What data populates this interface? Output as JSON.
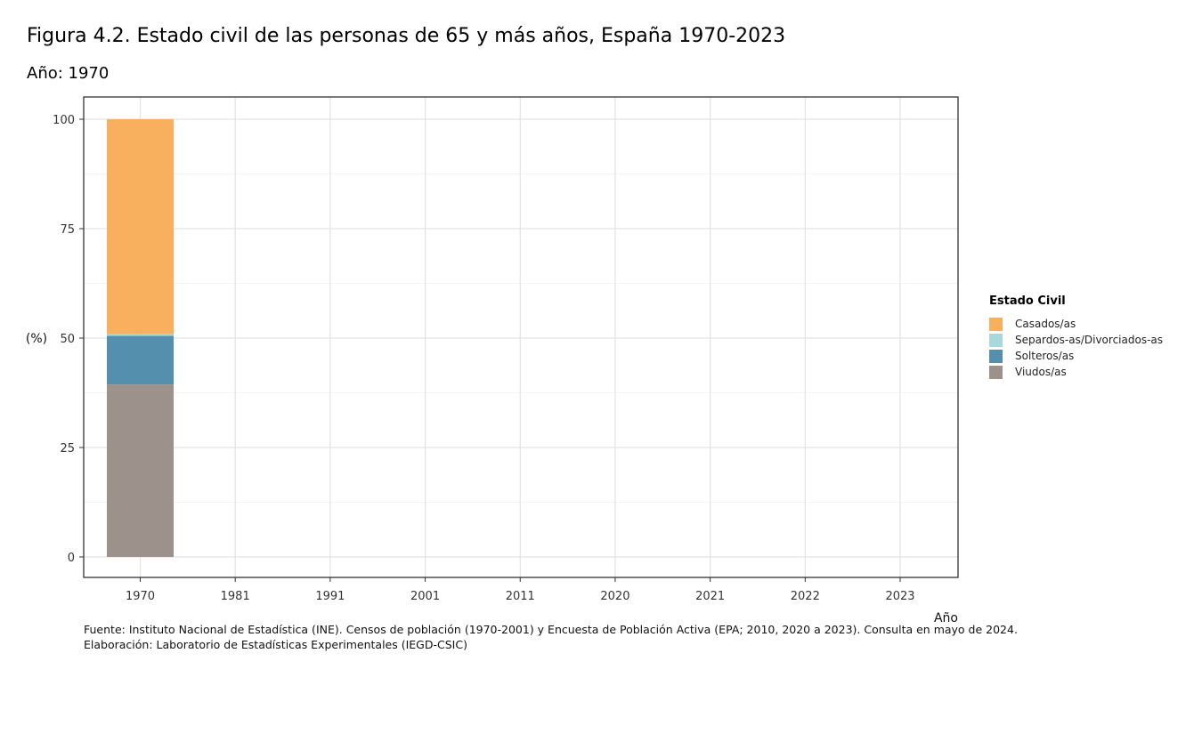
{
  "title": "Figura 4.2. Estado civil de las personas de 65 y más años, España 1970-2023",
  "subtitle": "Año: 1970",
  "footer": {
    "source": "Fuente: Instituto Nacional de Estadística (INE). Censos de población (1970-2001) y Encuesta de Población Activa (EPA; 2010, 2020 a 2023). Consulta en mayo de 2024.",
    "credit": "Elaboración: Laboratorio de Estadísticas Experimentales (IEGD-CSIC)"
  },
  "chart_data": {
    "type": "bar",
    "stacked": true,
    "categories": [
      "1970",
      "1981",
      "1991",
      "2001",
      "2011",
      "2020",
      "2021",
      "2022",
      "2023"
    ],
    "xlabel": "Año",
    "ylabel": "(%)",
    "ylim": [
      0,
      100
    ],
    "yticks": [
      0,
      25,
      50,
      75,
      100
    ],
    "grid": true,
    "legend_title": "Estado Civil",
    "legend_position": "right",
    "series": [
      {
        "name": "Viudos/as",
        "color": "#9c928b",
        "values": [
          39.4,
          null,
          null,
          null,
          null,
          null,
          null,
          null,
          null
        ]
      },
      {
        "name": "Solteros/as",
        "color": "#5490ae",
        "values": [
          11.1,
          null,
          null,
          null,
          null,
          null,
          null,
          null,
          null
        ]
      },
      {
        "name": "Separdos-as/Divorciados-as",
        "color": "#a8d7dc",
        "values": [
          0.4,
          null,
          null,
          null,
          null,
          null,
          null,
          null,
          null
        ]
      },
      {
        "name": "Casados/as",
        "color": "#f8b05f",
        "values": [
          49.1,
          null,
          null,
          null,
          null,
          null,
          null,
          null,
          null
        ]
      }
    ],
    "legend_order": [
      "Casados/as",
      "Separdos-as/Divorciados-as",
      "Solteros/as",
      "Viudos/as"
    ]
  }
}
